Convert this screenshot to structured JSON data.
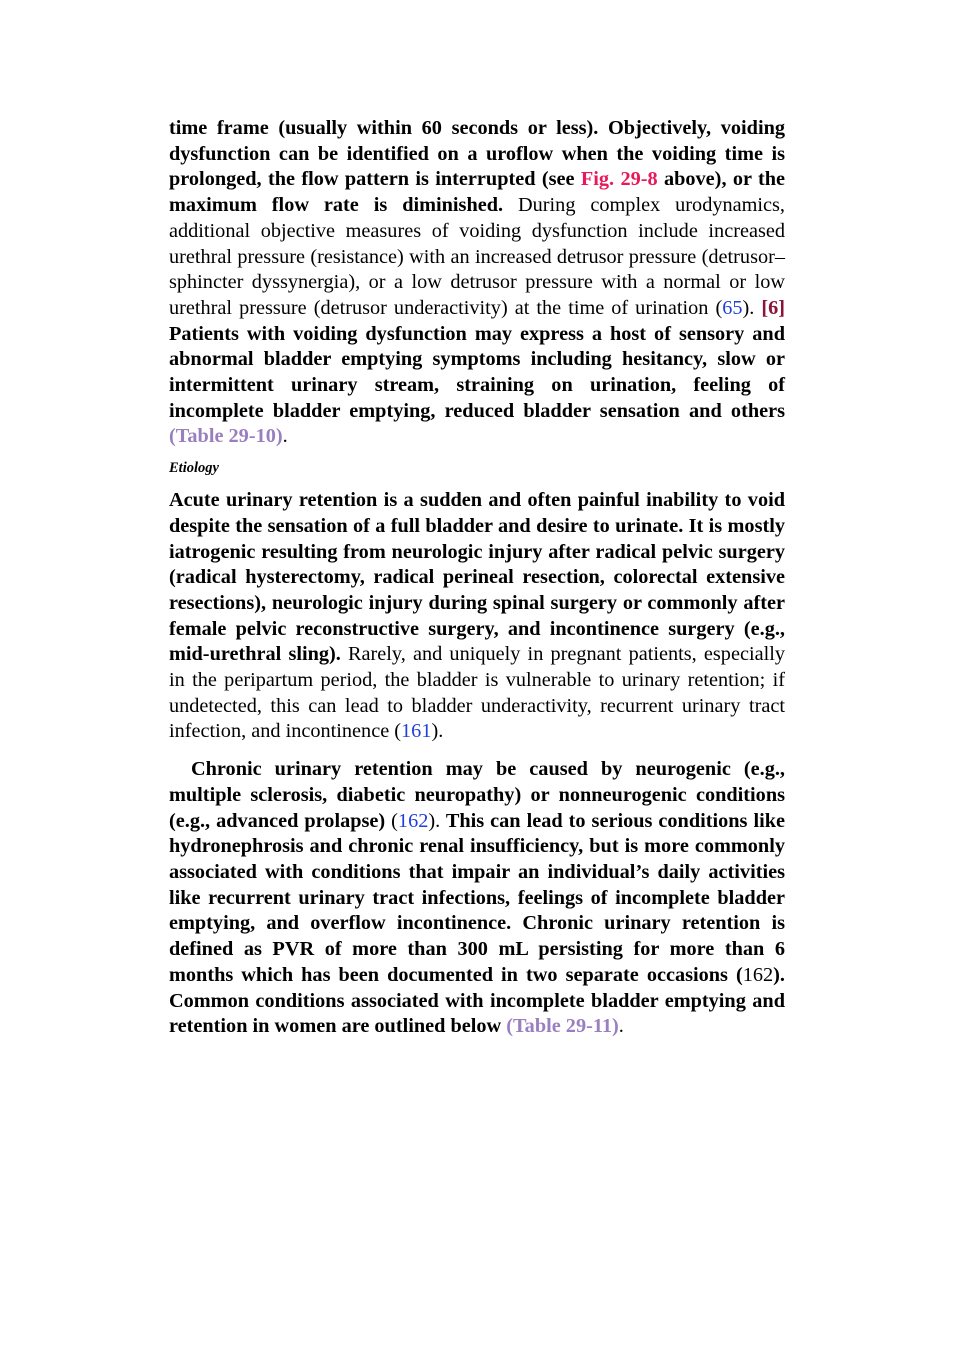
{
  "paragraph_1": [
    "time frame (usually within 60 seconds or less). Objectively, voiding dysfunction can be identified on a uroflow when the voiding time is prolonged, the flow pattern is interrupted (see ",
    "Fig. 29-8",
    " above), or the maximum flow rate is diminished.",
    " During complex urodynamics, additional objective measures of voiding dysfunction include increased urethral pressure (resistance) with an increased detrusor pressure (detrusor–sphincter dyssynergia), or a low detrusor pressure with a normal or low urethral pressure (detrusor underactivity) at the time of urination (",
    "65",
    "). ",
    "[6]",
    " Patients with voiding dysfunction may express a host of sensory and abnormal bladder emptying symptoms including hesitancy, slow or intermittent urinary stream, straining on urination, feeling of incomplete bladder emptying, reduced bladder sensation and others ",
    "(Table 29-10)",
    "."
  ],
  "heading": "Etiology",
  "paragraph_2": [
    "Acute urinary retention is a sudden and often painful inability to void despite the sensation of a full bladder and desire to urinate. It is mostly iatrogenic resulting from neurologic injury after radical pelvic surgery (radical hysterectomy, radical perineal resection, colorectal extensive resections), neurologic injury during spinal surgery or commonly after female pelvic reconstructive surgery, and incontinence surgery (e.g., mid-urethral sling).",
    " Rarely, and uniquely in pregnant patients, especially in the peripartum period, the bladder is vulnerable to urinary retention; if undetected, this can lead to bladder underactivity, recurrent urinary tract infection, and incontinence (",
    "161",
    ")."
  ],
  "paragraph_3": [
    "Chronic urinary retention may be caused by neurogenic (e.g., multiple sclerosis, diabetic neuropathy) or nonneurogenic conditions (e.g., advanced prolapse)",
    " (",
    "162",
    ").",
    " This can lead to serious conditions like hydronephrosis and chronic renal insufficiency, but is more commonly associated with conditions that impair an individual’s daily activities like recurrent urinary tract infections, feelings of incomplete bladder emptying, and overflow incontinence. Chronic urinary retention is defined as PVR of more than 300 mL persisting for more than 6 months which has been documented in two separate occasions (",
    "162",
    "). Common conditions associated with incomplete bladder emptying and retention in women are outlined below ",
    "(Table 29-11)",
    "."
  ]
}
